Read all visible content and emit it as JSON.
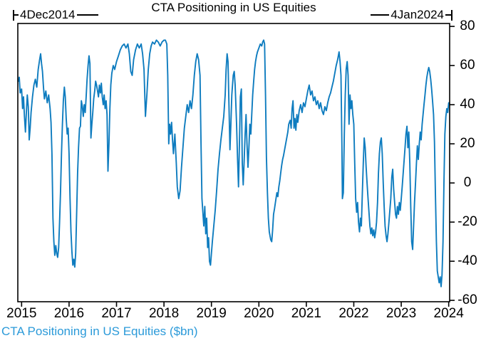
{
  "title": "CTA Positioning in US Equities",
  "annotations": {
    "start_label": "4Dec2014",
    "end_label": "4Jan2024"
  },
  "footer_label": "CTA Positioning in US Equities ($bn)",
  "colors": {
    "line": "#0e7cbf",
    "footer": "#2b9ad9",
    "axis": "#000000"
  },
  "chart_data": {
    "type": "line",
    "title": "CTA Positioning in US Equities",
    "series_label": "CTA Positioning in US Equities ($bn)",
    "x_ticks": [
      2015,
      2016,
      2017,
      2018,
      2019,
      2020,
      2021,
      2022,
      2023,
      2024
    ],
    "y_ticks": [
      80,
      60,
      40,
      20,
      0,
      -20,
      -40,
      -60
    ],
    "x_range": [
      2014.92,
      2024.02
    ],
    "y_range": [
      -60.7,
      81.5
    ],
    "grid": false,
    "legend_position": "bottom-left",
    "points": [
      [
        2014.93,
        52
      ],
      [
        2014.95,
        54
      ],
      [
        2014.97,
        46
      ],
      [
        2015.0,
        48
      ],
      [
        2015.02,
        38
      ],
      [
        2015.04,
        44
      ],
      [
        2015.06,
        34
      ],
      [
        2015.08,
        26
      ],
      [
        2015.1,
        36
      ],
      [
        2015.12,
        45
      ],
      [
        2015.14,
        39
      ],
      [
        2015.16,
        22
      ],
      [
        2015.18,
        28
      ],
      [
        2015.2,
        36
      ],
      [
        2015.23,
        44
      ],
      [
        2015.26,
        50
      ],
      [
        2015.29,
        53
      ],
      [
        2015.32,
        49
      ],
      [
        2015.35,
        58
      ],
      [
        2015.38,
        63
      ],
      [
        2015.4,
        66
      ],
      [
        2015.42,
        61
      ],
      [
        2015.44,
        57
      ],
      [
        2015.46,
        49
      ],
      [
        2015.48,
        43
      ],
      [
        2015.51,
        47
      ],
      [
        2015.54,
        41
      ],
      [
        2015.57,
        45
      ],
      [
        2015.6,
        38
      ],
      [
        2015.62,
        31
      ],
      [
        2015.64,
        15
      ],
      [
        2015.66,
        -18
      ],
      [
        2015.68,
        -30
      ],
      [
        2015.7,
        -37
      ],
      [
        2015.72,
        -32
      ],
      [
        2015.74,
        -36
      ],
      [
        2015.76,
        -38
      ],
      [
        2015.78,
        -33
      ],
      [
        2015.8,
        -20
      ],
      [
        2015.82,
        -5
      ],
      [
        2015.84,
        15
      ],
      [
        2015.86,
        30
      ],
      [
        2015.88,
        42
      ],
      [
        2015.9,
        49
      ],
      [
        2015.92,
        44
      ],
      [
        2015.94,
        33
      ],
      [
        2015.96,
        25
      ],
      [
        2015.98,
        28
      ],
      [
        2016.0,
        15
      ],
      [
        2016.02,
        -8
      ],
      [
        2016.04,
        -25
      ],
      [
        2016.06,
        -35
      ],
      [
        2016.08,
        -42
      ],
      [
        2016.1,
        -39
      ],
      [
        2016.12,
        -43
      ],
      [
        2016.14,
        -36
      ],
      [
        2016.16,
        -15
      ],
      [
        2016.18,
        5
      ],
      [
        2016.2,
        18
      ],
      [
        2016.22,
        28
      ],
      [
        2016.24,
        29
      ],
      [
        2016.26,
        42
      ],
      [
        2016.28,
        39
      ],
      [
        2016.3,
        34
      ],
      [
        2016.32,
        40
      ],
      [
        2016.34,
        36
      ],
      [
        2016.36,
        44
      ],
      [
        2016.38,
        53
      ],
      [
        2016.4,
        60
      ],
      [
        2016.42,
        65
      ],
      [
        2016.44,
        61
      ],
      [
        2016.46,
        23
      ],
      [
        2016.48,
        30
      ],
      [
        2016.5,
        36
      ],
      [
        2016.52,
        43
      ],
      [
        2016.54,
        47
      ],
      [
        2016.56,
        52
      ],
      [
        2016.58,
        50
      ],
      [
        2016.6,
        47
      ],
      [
        2016.62,
        44
      ],
      [
        2016.64,
        50
      ],
      [
        2016.66,
        46
      ],
      [
        2016.68,
        51
      ],
      [
        2016.7,
        44
      ],
      [
        2016.72,
        40
      ],
      [
        2016.74,
        45
      ],
      [
        2016.76,
        38
      ],
      [
        2016.78,
        42
      ],
      [
        2016.8,
        35
      ],
      [
        2016.82,
        6
      ],
      [
        2016.84,
        20
      ],
      [
        2016.86,
        38
      ],
      [
        2016.88,
        50
      ],
      [
        2016.9,
        56
      ],
      [
        2016.93,
        60
      ],
      [
        2016.96,
        58
      ],
      [
        2017.0,
        62
      ],
      [
        2017.04,
        65
      ],
      [
        2017.08,
        68
      ],
      [
        2017.12,
        70
      ],
      [
        2017.16,
        71
      ],
      [
        2017.2,
        69
      ],
      [
        2017.24,
        71
      ],
      [
        2017.27,
        66
      ],
      [
        2017.3,
        57
      ],
      [
        2017.33,
        55
      ],
      [
        2017.36,
        63
      ],
      [
        2017.4,
        68
      ],
      [
        2017.44,
        71
      ],
      [
        2017.48,
        69
      ],
      [
        2017.52,
        71
      ],
      [
        2017.55,
        66
      ],
      [
        2017.58,
        58
      ],
      [
        2017.61,
        34
      ],
      [
        2017.64,
        45
      ],
      [
        2017.67,
        58
      ],
      [
        2017.7,
        66
      ],
      [
        2017.73,
        70
      ],
      [
        2017.76,
        72
      ],
      [
        2017.8,
        71
      ],
      [
        2017.84,
        73
      ],
      [
        2017.88,
        72
      ],
      [
        2017.92,
        70
      ],
      [
        2017.96,
        72
      ],
      [
        2018.0,
        73
      ],
      [
        2018.03,
        73
      ],
      [
        2018.06,
        71
      ],
      [
        2018.08,
        55
      ],
      [
        2018.1,
        20
      ],
      [
        2018.12,
        30
      ],
      [
        2018.14,
        25
      ],
      [
        2018.16,
        31
      ],
      [
        2018.18,
        22
      ],
      [
        2018.2,
        15
      ],
      [
        2018.23,
        25
      ],
      [
        2018.26,
        10
      ],
      [
        2018.28,
        -2
      ],
      [
        2018.31,
        -8
      ],
      [
        2018.34,
        -4
      ],
      [
        2018.37,
        8
      ],
      [
        2018.4,
        18
      ],
      [
        2018.43,
        28
      ],
      [
        2018.46,
        34
      ],
      [
        2018.49,
        40
      ],
      [
        2018.52,
        36
      ],
      [
        2018.55,
        42
      ],
      [
        2018.58,
        38
      ],
      [
        2018.61,
        45
      ],
      [
        2018.64,
        55
      ],
      [
        2018.67,
        62
      ],
      [
        2018.7,
        66
      ],
      [
        2018.73,
        63
      ],
      [
        2018.76,
        55
      ],
      [
        2018.78,
        20
      ],
      [
        2018.8,
        -8
      ],
      [
        2018.82,
        -15
      ],
      [
        2018.84,
        -22
      ],
      [
        2018.86,
        -12
      ],
      [
        2018.88,
        -26
      ],
      [
        2018.9,
        -18
      ],
      [
        2018.92,
        -33
      ],
      [
        2018.94,
        -28
      ],
      [
        2018.96,
        -40
      ],
      [
        2018.98,
        -42
      ],
      [
        2019.0,
        -36
      ],
      [
        2019.02,
        -30
      ],
      [
        2019.05,
        -22
      ],
      [
        2019.08,
        -14
      ],
      [
        2019.11,
        -4
      ],
      [
        2019.14,
        7
      ],
      [
        2019.17,
        15
      ],
      [
        2019.2,
        22
      ],
      [
        2019.23,
        28
      ],
      [
        2019.26,
        34
      ],
      [
        2019.29,
        45
      ],
      [
        2019.31,
        58
      ],
      [
        2019.33,
        66
      ],
      [
        2019.35,
        62
      ],
      [
        2019.37,
        40
      ],
      [
        2019.39,
        17
      ],
      [
        2019.41,
        30
      ],
      [
        2019.43,
        45
      ],
      [
        2019.46,
        55
      ],
      [
        2019.48,
        57
      ],
      [
        2019.5,
        50
      ],
      [
        2019.53,
        30
      ],
      [
        2019.55,
        13
      ],
      [
        2019.57,
        -2
      ],
      [
        2019.59,
        20
      ],
      [
        2019.61,
        44
      ],
      [
        2019.63,
        48
      ],
      [
        2019.65,
        10
      ],
      [
        2019.67,
        -1
      ],
      [
        2019.69,
        12
      ],
      [
        2019.71,
        25
      ],
      [
        2019.73,
        35
      ],
      [
        2019.75,
        20
      ],
      [
        2019.77,
        8
      ],
      [
        2019.79,
        18
      ],
      [
        2019.81,
        30
      ],
      [
        2019.83,
        25
      ],
      [
        2019.85,
        35
      ],
      [
        2019.87,
        45
      ],
      [
        2019.89,
        52
      ],
      [
        2019.91,
        58
      ],
      [
        2019.93,
        62
      ],
      [
        2019.95,
        65
      ],
      [
        2019.97,
        67
      ],
      [
        2020.0,
        69
      ],
      [
        2020.03,
        71
      ],
      [
        2020.06,
        70
      ],
      [
        2020.08,
        72
      ],
      [
        2020.1,
        73
      ],
      [
        2020.12,
        71
      ],
      [
        2020.14,
        45
      ],
      [
        2020.16,
        13
      ],
      [
        2020.18,
        -5
      ],
      [
        2020.2,
        -18
      ],
      [
        2020.22,
        -25
      ],
      [
        2020.25,
        -29
      ],
      [
        2020.27,
        -30
      ],
      [
        2020.29,
        -24
      ],
      [
        2020.31,
        -16
      ],
      [
        2020.33,
        -13
      ],
      [
        2020.36,
        -8
      ],
      [
        2020.38,
        -5
      ],
      [
        2020.4,
        -7
      ],
      [
        2020.42,
        -2
      ],
      [
        2020.44,
        1
      ],
      [
        2020.46,
        5
      ],
      [
        2020.48,
        9
      ],
      [
        2020.5,
        12
      ],
      [
        2020.52,
        14
      ],
      [
        2020.55,
        18
      ],
      [
        2020.58,
        22
      ],
      [
        2020.61,
        26
      ],
      [
        2020.63,
        30
      ],
      [
        2020.66,
        32
      ],
      [
        2020.68,
        28
      ],
      [
        2020.7,
        38
      ],
      [
        2020.72,
        42
      ],
      [
        2020.74,
        28
      ],
      [
        2020.76,
        33
      ],
      [
        2020.78,
        27
      ],
      [
        2020.8,
        35
      ],
      [
        2020.82,
        31
      ],
      [
        2020.85,
        37
      ],
      [
        2020.88,
        40
      ],
      [
        2020.91,
        36
      ],
      [
        2020.94,
        41
      ],
      [
        2020.97,
        39
      ],
      [
        2021.0,
        43
      ],
      [
        2021.03,
        47
      ],
      [
        2021.06,
        50
      ],
      [
        2021.09,
        45
      ],
      [
        2021.12,
        47
      ],
      [
        2021.15,
        42
      ],
      [
        2021.18,
        44
      ],
      [
        2021.21,
        40
      ],
      [
        2021.24,
        42
      ],
      [
        2021.27,
        38
      ],
      [
        2021.3,
        41
      ],
      [
        2021.33,
        37
      ],
      [
        2021.36,
        35
      ],
      [
        2021.39,
        39
      ],
      [
        2021.42,
        37
      ],
      [
        2021.45,
        41
      ],
      [
        2021.48,
        44
      ],
      [
        2021.51,
        46
      ],
      [
        2021.54,
        49
      ],
      [
        2021.57,
        52
      ],
      [
        2021.6,
        56
      ],
      [
        2021.63,
        60
      ],
      [
        2021.66,
        63
      ],
      [
        2021.69,
        67
      ],
      [
        2021.71,
        62
      ],
      [
        2021.73,
        55
      ],
      [
        2021.75,
        20
      ],
      [
        2021.76,
        -8
      ],
      [
        2021.78,
        -5
      ],
      [
        2021.8,
        25
      ],
      [
        2021.82,
        45
      ],
      [
        2021.84,
        58
      ],
      [
        2021.86,
        62
      ],
      [
        2021.88,
        55
      ],
      [
        2021.9,
        30
      ],
      [
        2021.92,
        45
      ],
      [
        2021.94,
        38
      ],
      [
        2021.96,
        42
      ],
      [
        2021.98,
        35
      ],
      [
        2022.0,
        30
      ],
      [
        2022.02,
        10
      ],
      [
        2022.04,
        -8
      ],
      [
        2022.06,
        -15
      ],
      [
        2022.08,
        -10
      ],
      [
        2022.1,
        -20
      ],
      [
        2022.12,
        -25
      ],
      [
        2022.14,
        -18
      ],
      [
        2022.16,
        -22
      ],
      [
        2022.18,
        -5
      ],
      [
        2022.2,
        10
      ],
      [
        2022.22,
        23
      ],
      [
        2022.24,
        18
      ],
      [
        2022.26,
        8
      ],
      [
        2022.28,
        0
      ],
      [
        2022.3,
        -8
      ],
      [
        2022.32,
        -15
      ],
      [
        2022.34,
        -22
      ],
      [
        2022.36,
        -26
      ],
      [
        2022.38,
        -23
      ],
      [
        2022.4,
        -27
      ],
      [
        2022.42,
        -24
      ],
      [
        2022.44,
        -28
      ],
      [
        2022.46,
        -25
      ],
      [
        2022.48,
        -20
      ],
      [
        2022.5,
        -10
      ],
      [
        2022.52,
        5
      ],
      [
        2022.54,
        15
      ],
      [
        2022.56,
        21
      ],
      [
        2022.58,
        23
      ],
      [
        2022.6,
        15
      ],
      [
        2022.62,
        0
      ],
      [
        2022.64,
        -12
      ],
      [
        2022.66,
        -22
      ],
      [
        2022.68,
        -27
      ],
      [
        2022.7,
        -30
      ],
      [
        2022.72,
        -26
      ],
      [
        2022.74,
        -20
      ],
      [
        2022.76,
        -14
      ],
      [
        2022.78,
        -8
      ],
      [
        2022.8,
        3
      ],
      [
        2022.82,
        7
      ],
      [
        2022.84,
        -3
      ],
      [
        2022.86,
        -10
      ],
      [
        2022.88,
        -16
      ],
      [
        2022.9,
        -18
      ],
      [
        2022.92,
        -12
      ],
      [
        2022.94,
        -16
      ],
      [
        2022.96,
        -10
      ],
      [
        2022.98,
        -14
      ],
      [
        2023.0,
        -8
      ],
      [
        2023.02,
        -2
      ],
      [
        2023.05,
        8
      ],
      [
        2023.08,
        18
      ],
      [
        2023.1,
        25
      ],
      [
        2023.12,
        29
      ],
      [
        2023.14,
        18
      ],
      [
        2023.16,
        26
      ],
      [
        2023.18,
        10
      ],
      [
        2023.2,
        -12
      ],
      [
        2023.22,
        -30
      ],
      [
        2023.24,
        -34
      ],
      [
        2023.26,
        -22
      ],
      [
        2023.28,
        -10
      ],
      [
        2023.3,
        0
      ],
      [
        2023.32,
        10
      ],
      [
        2023.34,
        19
      ],
      [
        2023.36,
        12
      ],
      [
        2023.38,
        20
      ],
      [
        2023.4,
        26
      ],
      [
        2023.42,
        22
      ],
      [
        2023.44,
        30
      ],
      [
        2023.46,
        35
      ],
      [
        2023.48,
        40
      ],
      [
        2023.5,
        45
      ],
      [
        2023.52,
        50
      ],
      [
        2023.54,
        54
      ],
      [
        2023.56,
        57
      ],
      [
        2023.58,
        59
      ],
      [
        2023.6,
        57
      ],
      [
        2023.62,
        53
      ],
      [
        2023.64,
        48
      ],
      [
        2023.66,
        42
      ],
      [
        2023.68,
        35
      ],
      [
        2023.7,
        21
      ],
      [
        2023.72,
        -5
      ],
      [
        2023.74,
        -30
      ],
      [
        2023.76,
        -45
      ],
      [
        2023.78,
        -48
      ],
      [
        2023.8,
        -51
      ],
      [
        2023.82,
        -48
      ],
      [
        2023.84,
        -53
      ],
      [
        2023.86,
        -47
      ],
      [
        2023.88,
        -30
      ],
      [
        2023.9,
        0
      ],
      [
        2023.92,
        25
      ],
      [
        2023.94,
        34
      ],
      [
        2023.96,
        38
      ],
      [
        2023.98,
        36
      ],
      [
        2024.0,
        41
      ]
    ]
  }
}
